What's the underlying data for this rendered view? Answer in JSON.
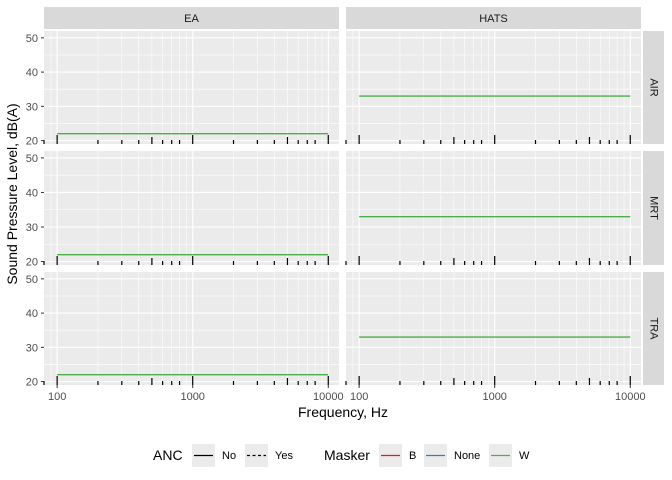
{
  "chart_data": {
    "type": "line",
    "xlabel": "Frequency, Hz",
    "ylabel": "Sound Pressure Level, dB(A)",
    "x_scale": "log",
    "xlim": [
      80,
      12000
    ],
    "ylim": [
      19,
      52
    ],
    "x_ticks": [
      100,
      1000,
      10000
    ],
    "x_tick_labels": [
      "100",
      "1000",
      "10000"
    ],
    "y_ticks": [
      20,
      30,
      40,
      50
    ],
    "y_tick_labels": [
      "20",
      "30",
      "40",
      "50"
    ],
    "facet_cols": [
      "EA",
      "HATS"
    ],
    "facet_rows": [
      "AIR",
      "MRT",
      "TRA"
    ],
    "rug_frequencies": [
      80,
      100,
      200,
      300,
      400,
      500,
      600,
      700,
      800,
      1000,
      2000,
      3000,
      4000,
      5000,
      6000,
      7000,
      8000,
      10000
    ],
    "panels": [
      {
        "col": "EA",
        "row": "AIR",
        "series": [
          {
            "anc": "No",
            "masker": "W",
            "x": [
              100,
              10000
            ],
            "y": [
              22,
              22
            ]
          }
        ]
      },
      {
        "col": "HATS",
        "row": "AIR",
        "series": [
          {
            "anc": "No",
            "masker": "W",
            "x": [
              100,
              10000
            ],
            "y": [
              33,
              33
            ]
          }
        ]
      },
      {
        "col": "EA",
        "row": "MRT",
        "series": [
          {
            "anc": "No",
            "masker": "W",
            "x": [
              100,
              10000
            ],
            "y": [
              22,
              22
            ]
          }
        ]
      },
      {
        "col": "HATS",
        "row": "MRT",
        "series": [
          {
            "anc": "No",
            "masker": "W",
            "x": [
              100,
              10000
            ],
            "y": [
              33,
              33
            ]
          }
        ]
      },
      {
        "col": "EA",
        "row": "TRA",
        "series": [
          {
            "anc": "No",
            "masker": "W",
            "x": [
              100,
              10000
            ],
            "y": [
              22,
              22
            ]
          }
        ]
      },
      {
        "col": "HATS",
        "row": "TRA",
        "series": [
          {
            "anc": "No",
            "masker": "W",
            "x": [
              100,
              10000
            ],
            "y": [
              33,
              33
            ]
          }
        ]
      }
    ],
    "legend": {
      "placement": "bottom",
      "anc": {
        "title": "ANC",
        "items": [
          {
            "label": "No",
            "linetype": "solid"
          },
          {
            "label": "Yes",
            "linetype": "dashed"
          }
        ]
      },
      "masker": {
        "title": "Masker",
        "items": [
          {
            "label": "B",
            "color": "#E41A1C"
          },
          {
            "label": "None",
            "color": "#377EB8"
          },
          {
            "label": "W",
            "color": "#4DAF4A"
          }
        ]
      }
    },
    "colors": {
      "panel_bg": "#EBEBEB",
      "grid": "#FFFFFF",
      "strip_bg": "#D9D9D9",
      "series_w": "#4DAF4A",
      "rug": "#000000"
    }
  }
}
